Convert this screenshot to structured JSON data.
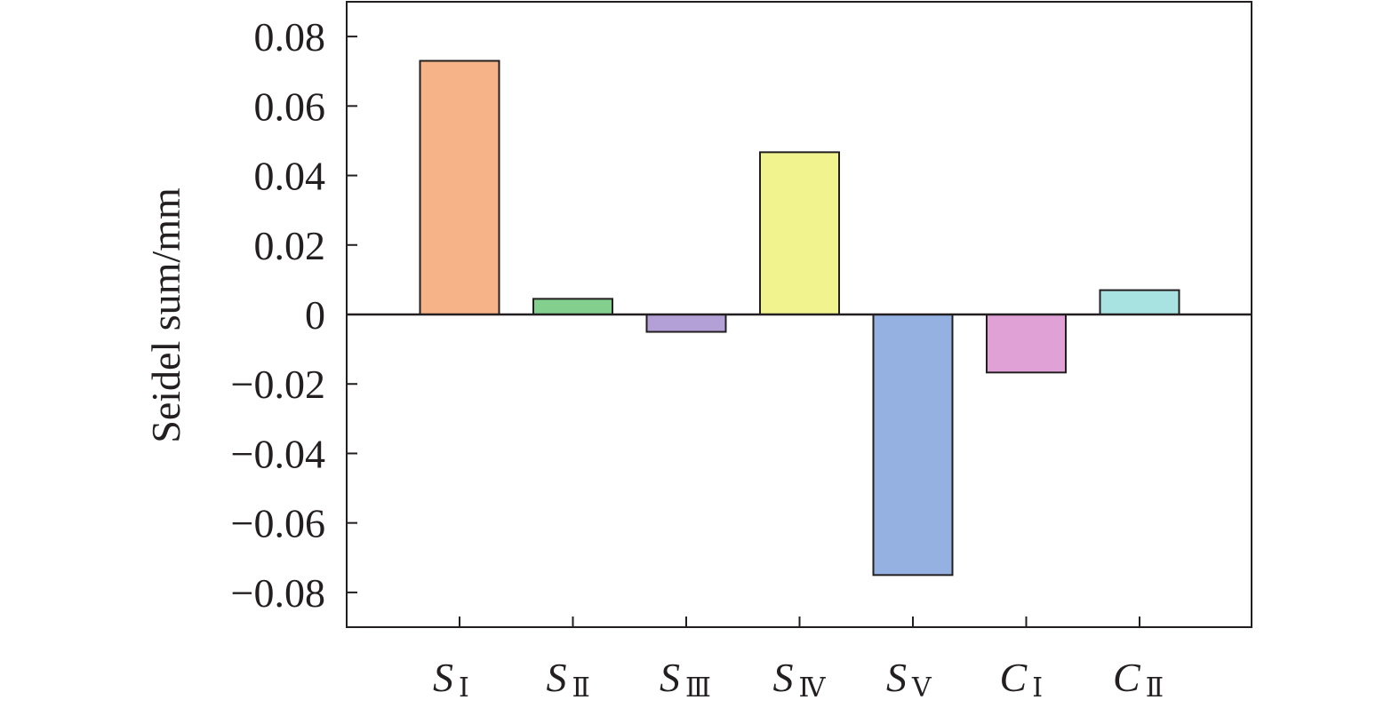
{
  "chart_data": {
    "type": "bar",
    "categories": [
      {
        "main": "S",
        "sub": "Ⅰ"
      },
      {
        "main": "S",
        "sub": "Ⅱ"
      },
      {
        "main": "S",
        "sub": "Ⅲ"
      },
      {
        "main": "S",
        "sub": "Ⅳ"
      },
      {
        "main": "S",
        "sub": "Ⅴ"
      },
      {
        "main": "C",
        "sub": "Ⅰ"
      },
      {
        "main": "C",
        "sub": "Ⅱ"
      }
    ],
    "values": [
      0.073,
      0.0045,
      -0.005,
      0.0467,
      -0.075,
      -0.0167,
      0.007
    ],
    "colors": [
      "#f6b387",
      "#83cf8d",
      "#b3a0d6",
      "#f1f48e",
      "#94b1e2",
      "#e0a1d6",
      "#a8e3e1"
    ],
    "ylabel": "Seidel sum/mm",
    "ylim": [
      -0.09,
      0.09
    ],
    "yticks": [
      {
        "value": 0.08,
        "label": "0.08"
      },
      {
        "value": 0.06,
        "label": "0.06"
      },
      {
        "value": 0.04,
        "label": "0.04"
      },
      {
        "value": 0.02,
        "label": "0.02"
      },
      {
        "value": 0,
        "label": "0"
      },
      {
        "value": -0.02,
        "label": "−0.02"
      },
      {
        "value": -0.04,
        "label": "−0.04"
      },
      {
        "value": -0.06,
        "label": "−0.06"
      },
      {
        "value": -0.08,
        "label": "−0.08"
      }
    ],
    "grid": false,
    "legend": "none"
  }
}
